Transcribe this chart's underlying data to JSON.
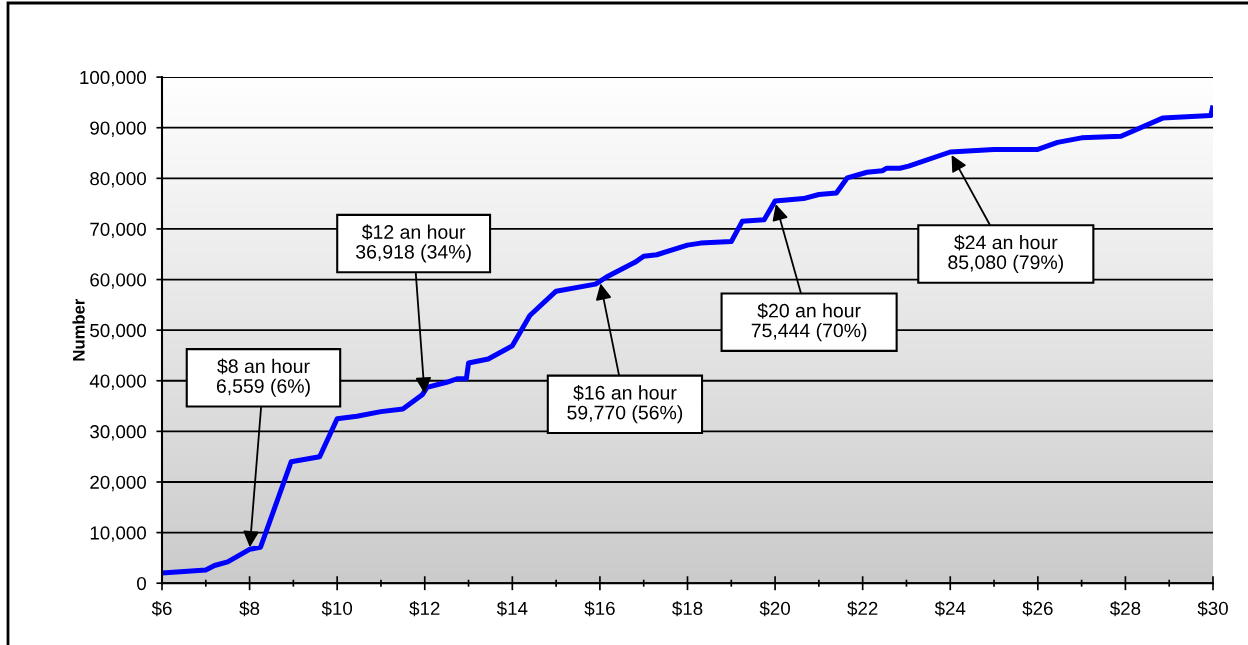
{
  "chart_data": {
    "type": "line",
    "ylabel": "Number",
    "x": [
      6.0,
      7.0,
      7.2,
      7.5,
      8.0,
      8.25,
      8.95,
      9.6,
      10.0,
      10.45,
      11.0,
      11.5,
      11.95,
      12.05,
      12.5,
      12.75,
      12.95,
      13.0,
      13.45,
      14.0,
      14.4,
      15.0,
      15.9,
      16.15,
      16.8,
      17.0,
      17.3,
      18.0,
      18.3,
      19.0,
      19.25,
      19.75,
      20.0,
      20.65,
      21.0,
      21.4,
      21.65,
      22.1,
      22.45,
      22.55,
      22.85,
      23.05,
      24.0,
      25.0,
      26.0,
      26.45,
      27.0,
      27.9,
      28.85,
      29.95,
      30.0
    ],
    "series": [
      {
        "color": "#0000ff",
        "values": [
          2000,
          2600,
          3500,
          4200,
          6700,
          7100,
          24000,
          25000,
          32500,
          33000,
          33900,
          34400,
          37300,
          38700,
          39700,
          40400,
          40400,
          43500,
          44300,
          46900,
          52900,
          57700,
          59100,
          60500,
          63400,
          64600,
          64900,
          66800,
          67200,
          67500,
          71500,
          71800,
          75500,
          76000,
          76800,
          77100,
          80100,
          81200,
          81500,
          82000,
          82000,
          82400,
          85200,
          85700,
          85700,
          87100,
          88000,
          88300,
          91900,
          92400,
          94400
        ]
      }
    ],
    "xlim": [
      6,
      30
    ],
    "xticks": [
      {
        "value": 6,
        "label": "$6"
      },
      {
        "value": 7,
        "label": null
      },
      {
        "value": 8,
        "label": "$8"
      },
      {
        "value": 9,
        "label": null
      },
      {
        "value": 10,
        "label": "$10"
      },
      {
        "value": 11,
        "label": null
      },
      {
        "value": 12,
        "label": "$12"
      },
      {
        "value": 13,
        "label": null
      },
      {
        "value": 14,
        "label": "$14"
      },
      {
        "value": 15,
        "label": null
      },
      {
        "value": 16,
        "label": "$16"
      },
      {
        "value": 17,
        "label": null
      },
      {
        "value": 18,
        "label": "$18"
      },
      {
        "value": 19,
        "label": null
      },
      {
        "value": 20,
        "label": "$20"
      },
      {
        "value": 21,
        "label": null
      },
      {
        "value": 22,
        "label": "$22"
      },
      {
        "value": 23,
        "label": null
      },
      {
        "value": 24,
        "label": "$24"
      },
      {
        "value": 25,
        "label": null
      },
      {
        "value": 26,
        "label": "$26"
      },
      {
        "value": 27,
        "label": null
      },
      {
        "value": 28,
        "label": "$28"
      },
      {
        "value": 29,
        "label": null
      },
      {
        "value": 30,
        "label": "$30"
      }
    ],
    "ylim": [
      0,
      100000
    ],
    "yticks": [
      0,
      {
        "value": 10000,
        "label": "10,000"
      },
      {
        "value": 20000,
        "label": "20,000"
      },
      {
        "value": 30000,
        "label": "30,000"
      },
      {
        "value": 40000,
        "label": "40,000"
      },
      {
        "value": 50000,
        "label": "50,000"
      },
      {
        "value": 60000,
        "label": "60,000"
      },
      {
        "value": 70000,
        "label": "70,000"
      },
      {
        "value": 80000,
        "label": "80,000"
      },
      {
        "value": 90000,
        "label": "90,000"
      },
      {
        "value": 100000,
        "label": "100,000"
      }
    ],
    "grid": "y",
    "line_style": "solid",
    "annotations": [
      {
        "text": "$8 an hour\n6,559 (6%)",
        "x": 8,
        "y": 6559
      },
      {
        "text": "$12 an hour\n36,918 (34%)",
        "x": 12,
        "y": 36918
      },
      {
        "text": "$16 an hour\n59,770 (56%)",
        "x": 16,
        "y": 59770
      },
      {
        "text": "$20 an hour\n75,444 (70%)",
        "x": 20,
        "y": 75444
      },
      {
        "text": "$24 an hour\n85,080 (79%)",
        "x": 24,
        "y": 85080
      }
    ]
  }
}
